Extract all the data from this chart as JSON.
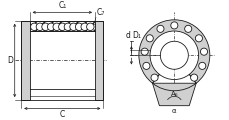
{
  "bg_color": "#ffffff",
  "line_color": "#1a1a1a",
  "gray_light": "#d0d0d0",
  "gray_dark": "#a0a0a0",
  "fig_width": 2.3,
  "fig_height": 1.2,
  "dpi": 100,
  "labels": {
    "C1": "C₁",
    "C7": "C₇",
    "C": "C",
    "D": "D",
    "d": "d",
    "D1": "D₁",
    "A6": "A₆",
    "alpha": "α"
  }
}
